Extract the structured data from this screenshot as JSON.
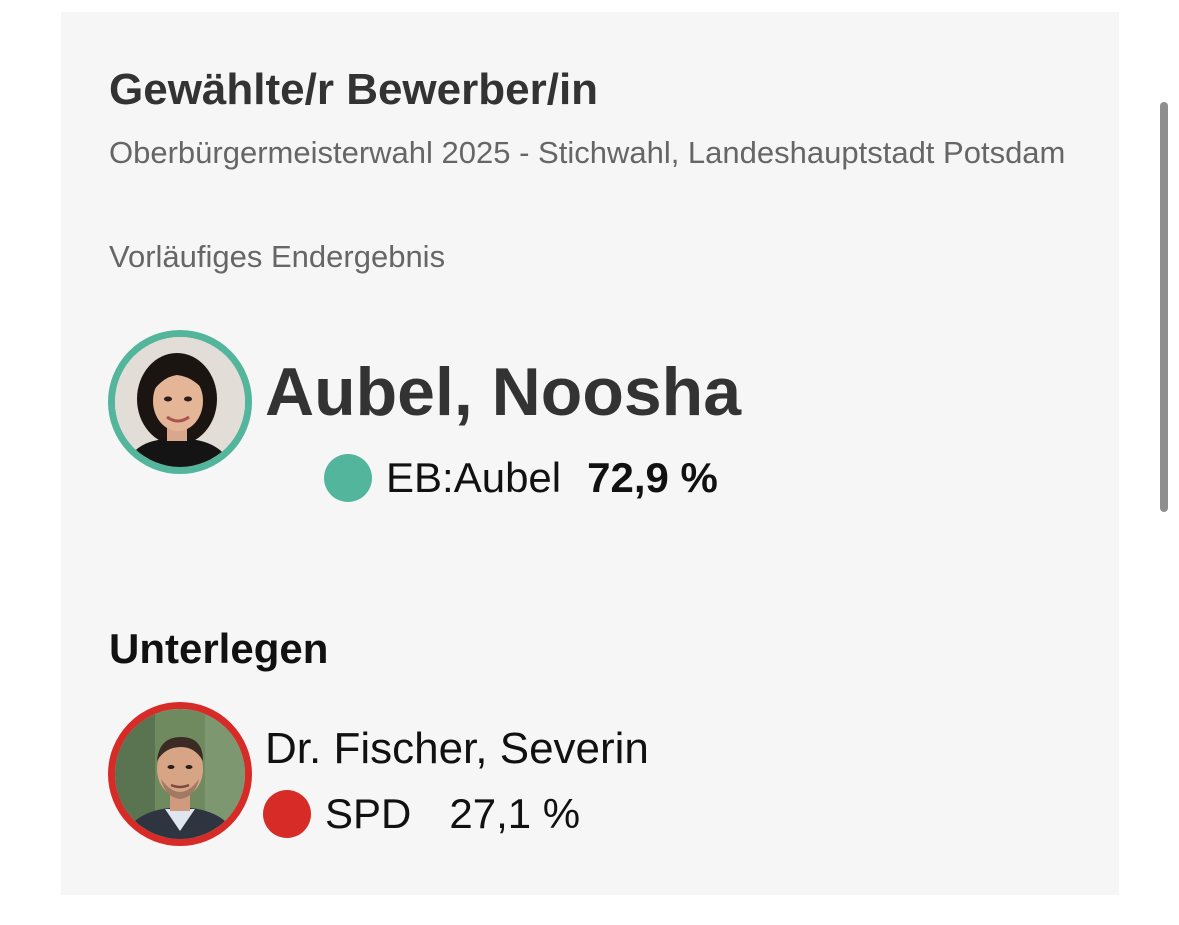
{
  "header": {
    "title": "Gewählte/r Bewerber/in",
    "subtitle": "Oberbürgermeisterwahl 2025 - Stichwahl, Landeshauptstadt Potsdam",
    "status": "Vorläufiges Endergebnis"
  },
  "winner": {
    "name": "Aubel, Noosha",
    "party": "EB:Aubel",
    "percent": "72,9 %",
    "color": "#52b59c",
    "photo_icon": "portrait-woman-icon"
  },
  "loser_section": {
    "label": "Unterlegen",
    "candidate": {
      "name": "Dr. Fischer, Severin",
      "party": "SPD",
      "percent": "27,1 %",
      "color": "#d62b27",
      "photo_icon": "portrait-man-icon"
    }
  }
}
